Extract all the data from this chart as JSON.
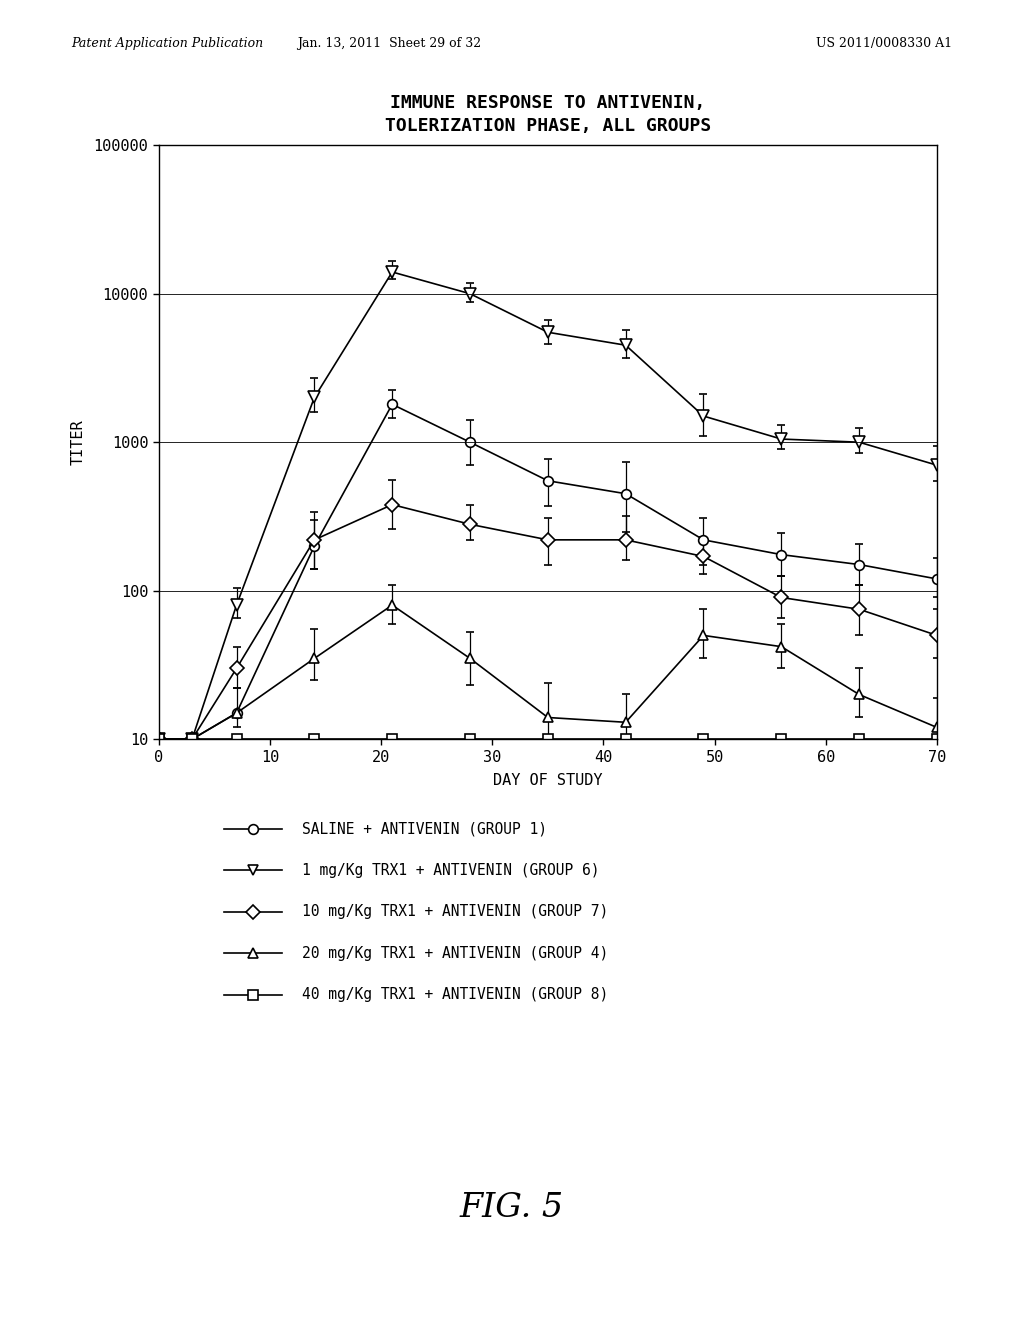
{
  "title_line1": "IMMUNE RESPONSE TO ANTIVENIN,",
  "title_line2": "TOLERIZATION PHASE, ALL GROUPS",
  "xlabel": "DAY OF STUDY",
  "ylabel": "TITER",
  "xlim": [
    0,
    70
  ],
  "ylim_log": [
    10,
    100000
  ],
  "xticks": [
    0,
    10,
    20,
    30,
    40,
    50,
    60,
    70
  ],
  "yticks": [
    10,
    100,
    1000,
    10000,
    100000
  ],
  "ytick_labels": [
    "10",
    "100",
    "1000",
    "10000",
    "100000"
  ],
  "group1": {
    "label": "SALINE + ANTIVENIN (GROUP 1)",
    "marker": "o",
    "x": [
      0,
      3,
      7,
      14,
      21,
      28,
      35,
      42,
      49,
      56,
      63,
      70
    ],
    "y": [
      10,
      10,
      15,
      200,
      1800,
      1000,
      550,
      450,
      220,
      175,
      150,
      120
    ],
    "yerr_lo": [
      0,
      0,
      0,
      60,
      350,
      300,
      180,
      200,
      70,
      50,
      40,
      30
    ],
    "yerr_hi": [
      0,
      0,
      0,
      100,
      450,
      400,
      220,
      280,
      90,
      70,
      55,
      45
    ]
  },
  "group6": {
    "label": "1 mg/Kg TRX1 + ANTIVENIN (GROUP 6)",
    "marker": "v",
    "x": [
      0,
      3,
      7,
      14,
      21,
      28,
      35,
      42,
      49,
      56,
      63,
      70
    ],
    "y": [
      10,
      10,
      80,
      2000,
      14000,
      10000,
      5500,
      4500,
      1500,
      1050,
      1000,
      700
    ],
    "yerr_lo": [
      0,
      0,
      15,
      400,
      1500,
      1200,
      900,
      800,
      400,
      150,
      150,
      150
    ],
    "yerr_hi": [
      0,
      0,
      25,
      700,
      2500,
      1800,
      1200,
      1200,
      600,
      250,
      250,
      250
    ]
  },
  "group7": {
    "label": "10 mg/Kg TRX1 + ANTIVENIN (GROUP 7)",
    "marker": "D",
    "x": [
      0,
      3,
      7,
      14,
      21,
      28,
      35,
      42,
      49,
      56,
      63,
      70
    ],
    "y": [
      10,
      10,
      30,
      220,
      380,
      280,
      220,
      220,
      170,
      90,
      75,
      50
    ],
    "yerr_lo": [
      0,
      0,
      8,
      80,
      120,
      60,
      70,
      60,
      40,
      25,
      25,
      15
    ],
    "yerr_hi": [
      0,
      0,
      12,
      120,
      180,
      100,
      90,
      100,
      60,
      35,
      35,
      25
    ]
  },
  "group4": {
    "label": "20 mg/Kg TRX1 + ANTIVENIN (GROUP 4)",
    "marker": "^",
    "x": [
      0,
      3,
      7,
      14,
      21,
      28,
      35,
      42,
      49,
      56,
      63,
      70
    ],
    "y": [
      10,
      10,
      15,
      35,
      80,
      35,
      14,
      13,
      50,
      42,
      20,
      12
    ],
    "yerr_lo": [
      0,
      0,
      3,
      10,
      20,
      12,
      5,
      4,
      15,
      12,
      6,
      3
    ],
    "yerr_hi": [
      0,
      0,
      7,
      20,
      30,
      18,
      10,
      7,
      25,
      18,
      10,
      7
    ]
  },
  "group8": {
    "label": "40 mg/Kg TRX1 + ANTIVENIN (GROUP 8)",
    "marker": "s",
    "x": [
      0,
      3,
      7,
      14,
      21,
      28,
      35,
      42,
      49,
      56,
      63,
      70
    ],
    "y": [
      10,
      10,
      10,
      10,
      10,
      10,
      10,
      10,
      10,
      10,
      10,
      10
    ],
    "yerr_lo": [
      0,
      0,
      0,
      0,
      0,
      0,
      0,
      0,
      0,
      0,
      0,
      0
    ],
    "yerr_hi": [
      0,
      0,
      0,
      0,
      0,
      0,
      0,
      0,
      0,
      0,
      0,
      0
    ]
  },
  "legend_entries": [
    [
      "o",
      "SALINE + ANTIVENIN (GROUP 1)"
    ],
    [
      "v",
      "1 mg/Kg TRX1 + ANTIVENIN (GROUP 6)"
    ],
    [
      "D",
      "10 mg/Kg TRX1 + ANTIVENIN (GROUP 7)"
    ],
    [
      "^",
      "20 mg/Kg TRX1 + ANTIVENIN (GROUP 4)"
    ],
    [
      "s",
      "40 mg/Kg TRX1 + ANTIVENIN (GROUP 8)"
    ]
  ],
  "header_left": "Patent Application Publication",
  "header_mid": "Jan. 13, 2011  Sheet 29 of 32",
  "header_right": "US 2011/0008330 A1",
  "figure_label": "FIG. 5",
  "background_color": "#ffffff"
}
